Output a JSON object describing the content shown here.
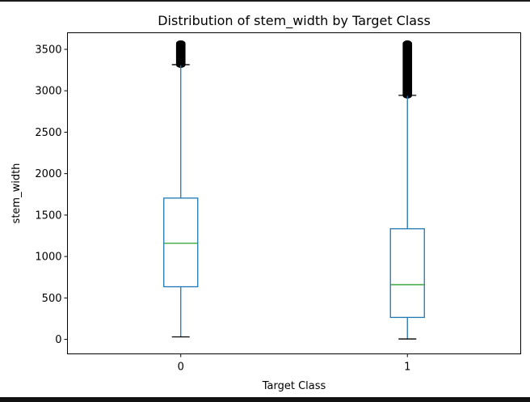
{
  "chart_data": {
    "type": "box",
    "title": "Distribution of stem_width by Target Class",
    "xlabel": "Target Class",
    "ylabel": "stem_width",
    "ylim": [
      -175,
      3700
    ],
    "yticks": [
      0,
      500,
      1000,
      1500,
      2000,
      2500,
      3000,
      3500
    ],
    "grid": false,
    "categories": [
      "0",
      "1"
    ],
    "boxes": [
      {
        "category": "0",
        "whisker_low": 30,
        "q1": 635,
        "median": 1160,
        "q3": 1705,
        "whisker_high": 3315,
        "outliers_from": 3315,
        "outliers_to": 3570
      },
      {
        "category": "1",
        "whisker_low": 5,
        "q1": 265,
        "median": 660,
        "q3": 1335,
        "whisker_high": 2945,
        "outliers_from": 2945,
        "outliers_to": 3570
      }
    ],
    "colors": {
      "box": "#1f77b4",
      "median": "#2ca02c",
      "whisker_cap": "#000000",
      "outlier": "#000000"
    }
  }
}
